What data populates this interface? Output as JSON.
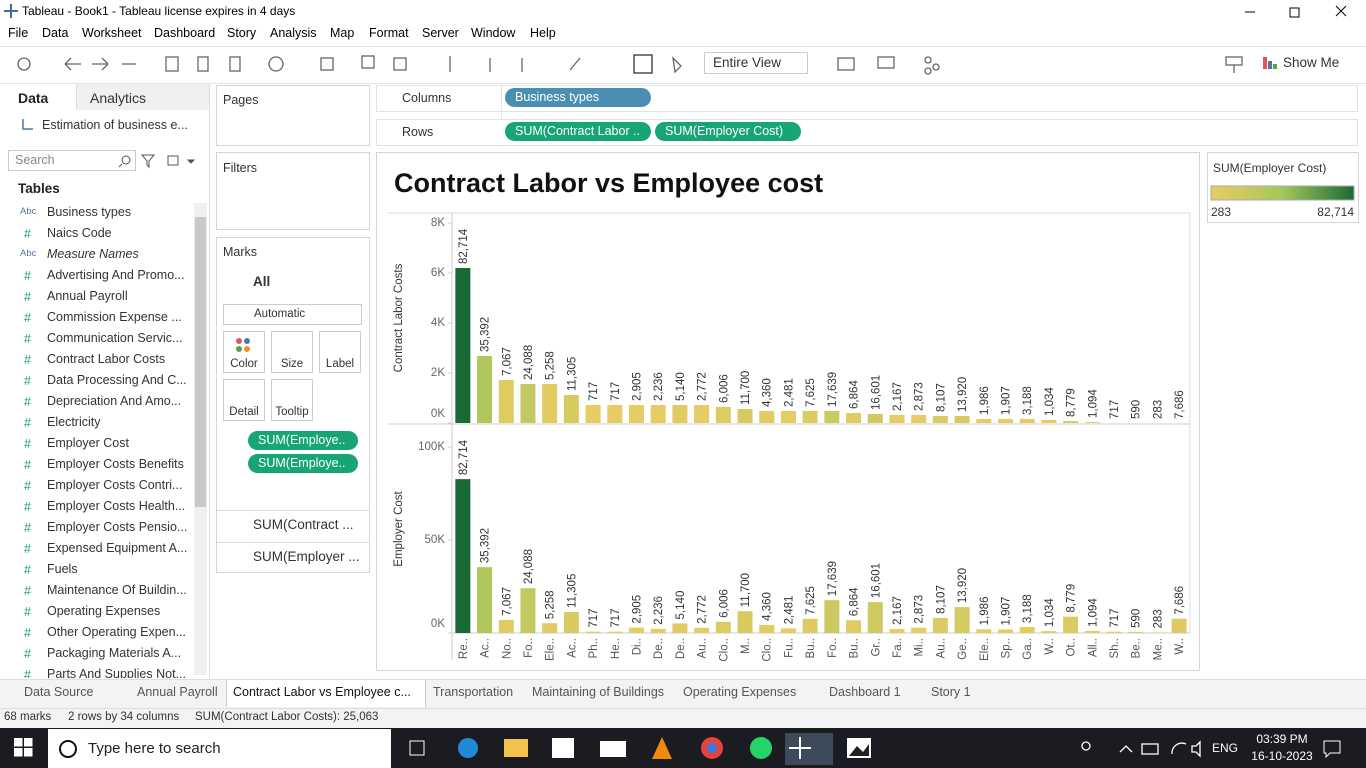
{
  "window": {
    "title": "Tableau - Book1 - Tableau license expires in 4 days"
  },
  "menu": [
    "File",
    "Data",
    "Worksheet",
    "Dashboard",
    "Story",
    "Analysis",
    "Map",
    "Format",
    "Server",
    "Window",
    "Help"
  ],
  "toolbar": {
    "fit": "Entire View",
    "show_me": "Show Me"
  },
  "data_pane": {
    "tabs": [
      "Data",
      "Analytics"
    ],
    "source": "Estimation of business e...",
    "search": "Search",
    "tables": "Tables",
    "fields": [
      {
        "icon": "Abc",
        "name": "Business types"
      },
      {
        "icon": "#",
        "name": "Naics Code"
      },
      {
        "icon": "Abc",
        "name": "Measure Names"
      },
      {
        "icon": "#",
        "name": "Advertising And Promo..."
      },
      {
        "icon": "#",
        "name": "Annual Payroll"
      },
      {
        "icon": "#",
        "name": "Commission Expense ..."
      },
      {
        "icon": "#",
        "name": "Communication Servic..."
      },
      {
        "icon": "#",
        "name": "Contract Labor Costs"
      },
      {
        "icon": "#",
        "name": "Data Processing And C..."
      },
      {
        "icon": "#",
        "name": "Depreciation And Amo..."
      },
      {
        "icon": "#",
        "name": "Electricity"
      },
      {
        "icon": "#",
        "name": "Employer Cost"
      },
      {
        "icon": "#",
        "name": "Employer Costs Benefits"
      },
      {
        "icon": "#",
        "name": "Employer Costs Contri..."
      },
      {
        "icon": "#",
        "name": "Employer Costs Health..."
      },
      {
        "icon": "#",
        "name": "Employer Costs Pensio..."
      },
      {
        "icon": "#",
        "name": "Expensed Equipment A..."
      },
      {
        "icon": "#",
        "name": "Fuels"
      },
      {
        "icon": "#",
        "name": "Maintenance Of Buildin..."
      },
      {
        "icon": "#",
        "name": "Operating Expenses"
      },
      {
        "icon": "#",
        "name": "Other Operating Expen..."
      },
      {
        "icon": "#",
        "name": "Packaging Materials A..."
      },
      {
        "icon": "#",
        "name": "Parts And Supplies Not..."
      }
    ]
  },
  "cards": {
    "pages": "Pages",
    "filters": "Filters",
    "marks": "Marks",
    "all": "All",
    "mark_type": "Automatic",
    "buttons": [
      "Color",
      "Size",
      "Label",
      "Detail",
      "Tooltip"
    ],
    "pills": [
      "SUM(Employe..",
      "SUM(Employe.."
    ],
    "measures": [
      "SUM(Contract ...",
      "SUM(Employer ..."
    ]
  },
  "shelves": {
    "columns": {
      "label": "Columns",
      "pills": [
        "Business types"
      ]
    },
    "rows": {
      "label": "Rows",
      "pills": [
        "SUM(Contract Labor ..",
        "SUM(Employer Cost)"
      ]
    }
  },
  "chart_data": {
    "type": "bar",
    "title": "Contract Labor vs Employee cost",
    "categories": [
      "Re..",
      "Ac..",
      "No..",
      "Fo..",
      "Ele..",
      "Ac..",
      "Ph..",
      "He..",
      "Di..",
      "De..",
      "De..",
      "Au..",
      "Clo..",
      "M..",
      "Clo..",
      "Fu..",
      "Bu..",
      "Fo..",
      "Bu..",
      "Gr..",
      "Fa..",
      "Mi..",
      "Au..",
      "Ge..",
      "Ele..",
      "Sp..",
      "Ga..",
      "W..",
      "Ot..",
      "All..",
      "Sh..",
      "Be..",
      "Me..",
      "W.."
    ],
    "panels": [
      {
        "y_label": "Contract Labor Costs",
        "values": [
          6200,
          2680,
          1720,
          1560,
          1560,
          1120,
          720,
          720,
          720,
          720,
          720,
          720,
          640,
          560,
          480,
          480,
          480,
          480,
          400,
          360,
          320,
          320,
          280,
          280,
          160,
          160,
          160,
          120,
          80,
          40,
          0,
          0,
          0,
          0
        ],
        "ylim": [
          0,
          8400
        ],
        "yticks": [
          {
            "value": 0,
            "label": "0K"
          },
          {
            "value": 2000,
            "label": "2K"
          },
          {
            "value": 4000,
            "label": "4K"
          },
          {
            "value": 6000,
            "label": "6K"
          },
          {
            "value": 8000,
            "label": "8K"
          }
        ]
      },
      {
        "y_label": "Employer Cost",
        "values": [
          82714,
          35392,
          7067,
          24088,
          5258,
          11305,
          717,
          717,
          2905,
          2236,
          5140,
          2772,
          6006,
          11700,
          4360,
          2481,
          7625,
          17639,
          6864,
          16601,
          2167,
          2873,
          8107,
          13920,
          1986,
          1907,
          3188,
          1034,
          8779,
          1094,
          717,
          590,
          283,
          7686
        ],
        "value_labels": [
          "82,714",
          "35,392",
          "7,067",
          "24,088",
          "5,258",
          "11,305",
          "717",
          "717",
          "2,905",
          "2,236",
          "5,140",
          "2,772",
          "6,006",
          "11,700",
          "4,360",
          "2,481",
          "7,625",
          "17,639",
          "6,864",
          "16,601",
          "2,167",
          "2,873",
          "8,107",
          "13,920",
          "1,986",
          "1,907",
          "3,188",
          "1,034",
          "8,779",
          "1,094",
          "717",
          "590",
          "283",
          "7,686"
        ],
        "ylim": [
          0,
          111800
        ],
        "yticks": [
          {
            "value": 0,
            "label": "0K"
          },
          {
            "value": 50000,
            "label": "50K"
          },
          {
            "value": 100000,
            "label": "100K"
          }
        ]
      }
    ],
    "legend": {
      "title": "SUM(Employer Cost)",
      "min": 283,
      "max": {
        "value": 82714,
        "label": "82,714"
      },
      "colors": [
        "#e9cc63",
        "#a5c65c",
        "#1b6a36"
      ]
    }
  },
  "sheet_tabs": [
    "Data Source",
    "Annual Payroll",
    "Contract Labor vs Employee c...",
    "Transportation",
    "Maintaining of Buildings",
    "Operating Expenses",
    "Dashboard 1",
    "Story 1"
  ],
  "status": [
    "68 marks",
    "2 rows by 34 columns",
    "SUM(Contract Labor Costs): 25,063"
  ],
  "taskbar": {
    "search": "Type here to search",
    "lang": "ENG",
    "time": "03:39 PM",
    "date": "16-10-2023"
  }
}
